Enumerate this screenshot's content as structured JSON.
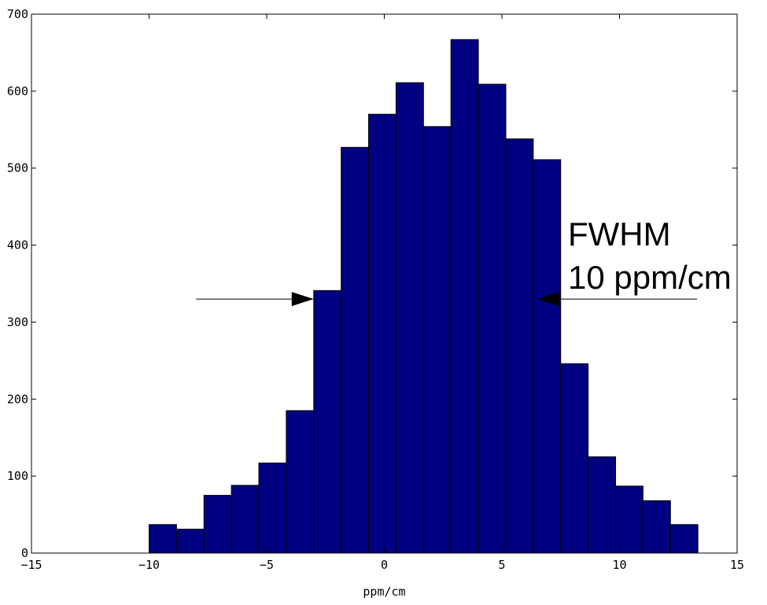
{
  "chart_data": {
    "type": "bar",
    "bin_width": 1.1667,
    "bins": [
      {
        "x0": -10.0,
        "count": 37
      },
      {
        "x0": -8.833,
        "count": 31
      },
      {
        "x0": -7.667,
        "count": 75
      },
      {
        "x0": -6.5,
        "count": 88
      },
      {
        "x0": -5.333,
        "count": 117
      },
      {
        "x0": -4.167,
        "count": 185
      },
      {
        "x0": -3.0,
        "count": 341
      },
      {
        "x0": -1.833,
        "count": 527
      },
      {
        "x0": -0.667,
        "count": 570
      },
      {
        "x0": 0.5,
        "count": 611
      },
      {
        "x0": 1.667,
        "count": 554
      },
      {
        "x0": 2.833,
        "count": 667
      },
      {
        "x0": 4.0,
        "count": 609
      },
      {
        "x0": 5.167,
        "count": 538
      },
      {
        "x0": 6.333,
        "count": 511
      },
      {
        "x0": 7.5,
        "count": 246
      },
      {
        "x0": 8.667,
        "count": 125
      },
      {
        "x0": 9.833,
        "count": 87
      },
      {
        "x0": 11.0,
        "count": 68
      },
      {
        "x0": 12.167,
        "count": 37
      }
    ],
    "xlim": [
      -15,
      15
    ],
    "ylim": [
      0,
      700
    ],
    "xticks": [
      -15,
      -10,
      -5,
      0,
      5,
      10,
      15
    ],
    "yticks": [
      0,
      100,
      200,
      300,
      400,
      500,
      600,
      700
    ],
    "xlabel": "ppm/cm",
    "ylabel": "",
    "bar_color": "#000080",
    "grid": false,
    "annotation": {
      "line1": "FWHM",
      "line2": "10 ppm/cm",
      "arrow_y": 330,
      "left_arrow": {
        "x_from": -8.0,
        "x_to": -3.0
      },
      "right_arrow": {
        "x_from": 13.3,
        "x_to": 6.5
      }
    }
  }
}
